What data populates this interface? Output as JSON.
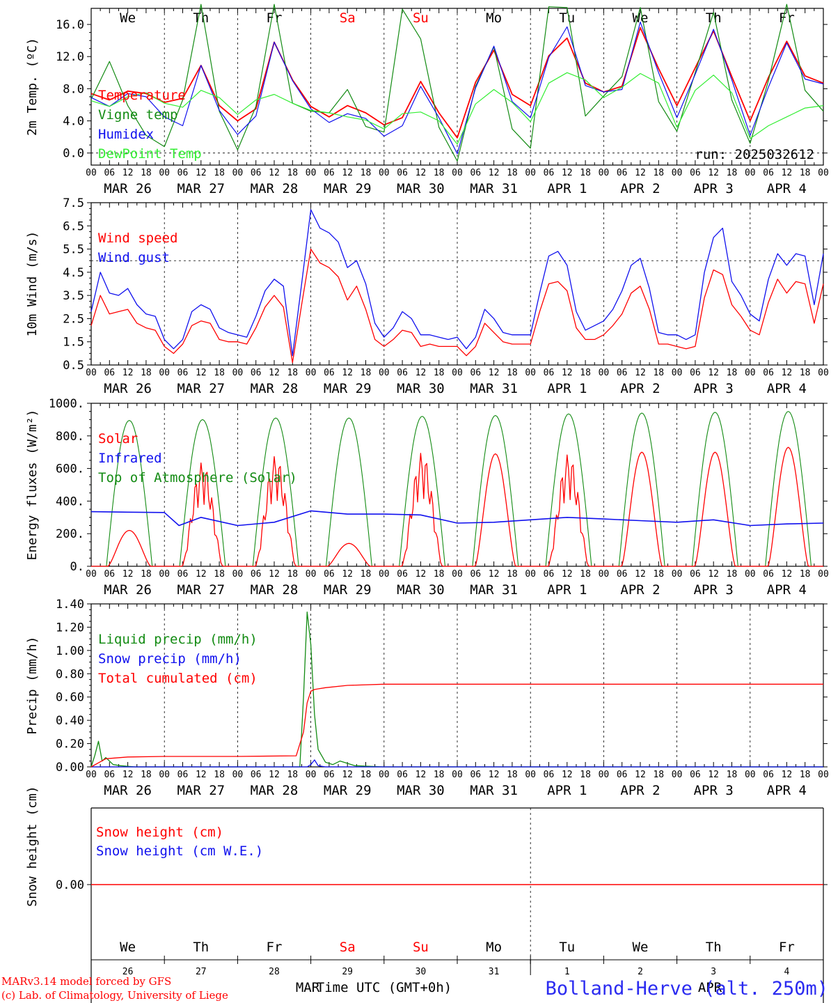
{
  "colors": {
    "red": "#ff0000",
    "green": "#138b13",
    "blue": "#1010ee",
    "light_green": "#33ee33",
    "axis": "#000000",
    "station": "#2b2bf0"
  },
  "shared": {
    "hour_ticks": [
      "00",
      "06",
      "12",
      "18"
    ],
    "dates": [
      "MAR 26",
      "MAR 27",
      "MAR 28",
      "MAR 29",
      "MAR 30",
      "MAR 31",
      "APR  1",
      "APR  2",
      "APR  3",
      "APR  4"
    ],
    "weekdays": [
      {
        "label": "We",
        "color": "#000000"
      },
      {
        "label": "Th",
        "color": "#000000"
      },
      {
        "label": "Fr",
        "color": "#000000"
      },
      {
        "label": "Sa",
        "color": "#ff0000"
      },
      {
        "label": "Su",
        "color": "#ff0000"
      },
      {
        "label": "Mo",
        "color": "#000000"
      },
      {
        "label": "Tu",
        "color": "#000000"
      },
      {
        "label": "We",
        "color": "#000000"
      },
      {
        "label": "Th",
        "color": "#000000"
      },
      {
        "label": "Fr",
        "color": "#000000"
      }
    ],
    "day_numbers": [
      "26",
      "27",
      "28",
      "29",
      "30",
      "31",
      "1",
      "2",
      "3",
      "4"
    ],
    "month_labels": [
      "MAR",
      "APR"
    ]
  },
  "footer": {
    "credit_line1": "MARv3.14 model forced by GFS",
    "credit_line2": "(c) Lab. of Climatology, University of Liege",
    "xlabel": "Time UTC (GMT+0h)",
    "station": "Bolland-Herve (alt. 250m)"
  },
  "chart_data": [
    {
      "type": "line",
      "ylabel": "2m Temp. (ºC)",
      "ylim": [
        -1.5,
        18.0
      ],
      "yticks": [
        "0.0",
        "4.0",
        "8.0",
        "12.0",
        "16.0"
      ],
      "ytick_values": [
        0,
        4,
        8,
        12,
        16
      ],
      "run_label": "run: 2025032612",
      "x_days": [
        0,
        0.25,
        0.5,
        0.75,
        1,
        1.25,
        1.5,
        1.75,
        2,
        2.25,
        2.5,
        2.75,
        3,
        3.25,
        3.5,
        3.75,
        4,
        4.25,
        4.5,
        4.75,
        5,
        5.25,
        5.5,
        5.75,
        6,
        6.25,
        6.5,
        6.75,
        7,
        7.25,
        7.5,
        7.75,
        8,
        8.25,
        8.5,
        8.75,
        9,
        9.25,
        9.5,
        9.75,
        10
      ],
      "series": [
        {
          "name": "Temperature",
          "color": "#ff0000",
          "values": [
            7.4,
            6.6,
            7.7,
            7.4,
            6.3,
            6.8,
            10.9,
            5.9,
            4.0,
            5.5,
            13.8,
            9.1,
            5.8,
            4.5,
            5.9,
            5.0,
            3.5,
            4.4,
            8.9,
            5.0,
            1.9,
            8.8,
            12.8,
            7.3,
            5.9,
            12.1,
            14.3,
            8.7,
            7.6,
            8.3,
            15.6,
            10.5,
            5.9,
            10.6,
            15.2,
            9.5,
            4.0,
            9.4,
            13.9,
            9.6,
            8.7
          ]
        },
        {
          "name": "Vigne temp",
          "color": "#138b13",
          "values": [
            6.7,
            11.4,
            5.9,
            2.2,
            0.8,
            6.6,
            18.5,
            5.2,
            0.4,
            5.8,
            18.5,
            6.2,
            5.2,
            5.0,
            7.9,
            3.3,
            2.6,
            17.9,
            14.2,
            3.2,
            -1.0,
            8.3,
            13.2,
            3.0,
            0.6,
            18.2,
            18.1,
            4.6,
            7.1,
            9.5,
            18.1,
            6.4,
            2.7,
            10.0,
            17.5,
            6.6,
            1.2,
            9.0,
            18.5,
            7.8,
            5.2
          ]
        },
        {
          "name": "Humidex",
          "color": "#1010ee",
          "values": [
            6.9,
            5.8,
            7.4,
            7.0,
            4.5,
            3.4,
            10.9,
            5.3,
            2.3,
            4.6,
            13.8,
            9.0,
            5.5,
            3.8,
            4.9,
            4.3,
            2.1,
            3.4,
            8.3,
            4.4,
            -0.1,
            8.1,
            13.3,
            6.4,
            4.4,
            11.9,
            15.7,
            8.4,
            7.6,
            7.9,
            16.3,
            10.0,
            4.4,
            9.8,
            15.4,
            9.1,
            2.2,
            8.2,
            13.7,
            9.2,
            8.6
          ]
        },
        {
          "name": "DewPoint Temp",
          "color": "#33ee33",
          "values": [
            6.5,
            5.8,
            7.0,
            7.5,
            6.2,
            5.7,
            7.8,
            6.9,
            4.8,
            6.6,
            7.3,
            6.2,
            5.3,
            5.0,
            4.5,
            4.1,
            3.0,
            4.9,
            5.1,
            4.0,
            1.1,
            6.1,
            7.9,
            6.3,
            3.9,
            8.7,
            10.0,
            9.1,
            6.9,
            8.2,
            9.9,
            8.7,
            3.2,
            7.8,
            9.7,
            7.5,
            1.8,
            3.4,
            4.5,
            5.6,
            5.9
          ]
        }
      ]
    },
    {
      "type": "line",
      "ylabel": "10m Wind (m/s)",
      "ylim": [
        0.5,
        7.5
      ],
      "yticks": [
        "0.5",
        "1.5",
        "2.5",
        "3.5",
        "4.5",
        "5.5",
        "6.5",
        "7.5"
      ],
      "ytick_values": [
        0.5,
        1.5,
        2.5,
        3.5,
        4.5,
        5.5,
        6.5,
        7.5
      ],
      "reference_line": 5.0,
      "x_days": [
        0,
        0.125,
        0.25,
        0.375,
        0.5,
        0.625,
        0.75,
        0.875,
        1,
        1.125,
        1.25,
        1.375,
        1.5,
        1.625,
        1.75,
        1.875,
        2,
        2.125,
        2.25,
        2.375,
        2.5,
        2.625,
        2.75,
        2.875,
        3,
        3.125,
        3.25,
        3.375,
        3.5,
        3.625,
        3.75,
        3.875,
        4,
        4.125,
        4.25,
        4.375,
        4.5,
        4.625,
        4.75,
        4.875,
        5,
        5.125,
        5.25,
        5.375,
        5.5,
        5.625,
        5.75,
        5.875,
        6,
        6.125,
        6.25,
        6.375,
        6.5,
        6.625,
        6.75,
        6.875,
        7,
        7.125,
        7.25,
        7.375,
        7.5,
        7.625,
        7.75,
        7.875,
        8,
        8.125,
        8.25,
        8.375,
        8.5,
        8.625,
        8.75,
        8.875,
        9,
        9.125,
        9.25,
        9.375,
        9.5,
        9.625,
        9.75,
        9.875,
        10
      ],
      "series": [
        {
          "name": "Wind speed",
          "color": "#ff0000",
          "values": [
            2.2,
            3.5,
            2.7,
            2.8,
            2.9,
            2.3,
            2.1,
            2.0,
            1.3,
            1.0,
            1.4,
            2.2,
            2.4,
            2.3,
            1.6,
            1.5,
            1.5,
            1.4,
            2.1,
            3.0,
            3.5,
            3.0,
            0.6,
            3.1,
            5.5,
            4.9,
            4.7,
            4.3,
            3.3,
            3.9,
            2.9,
            1.6,
            1.3,
            1.6,
            2.0,
            1.9,
            1.3,
            1.4,
            1.3,
            1.3,
            1.3,
            0.9,
            1.3,
            2.3,
            1.9,
            1.5,
            1.4,
            1.4,
            1.4,
            2.8,
            4.0,
            4.1,
            3.7,
            2.1,
            1.6,
            1.6,
            1.8,
            2.2,
            2.7,
            3.6,
            3.9,
            2.9,
            1.4,
            1.4,
            1.3,
            1.2,
            1.3,
            3.4,
            4.6,
            4.4,
            3.1,
            2.6,
            2.0,
            1.8,
            3.2,
            4.2,
            3.6,
            4.1,
            4.0,
            2.3,
            4.0
          ]
        },
        {
          "name": "Wind gust",
          "color": "#1010ee",
          "values": [
            2.8,
            4.5,
            3.6,
            3.5,
            3.8,
            3.1,
            2.7,
            2.6,
            1.6,
            1.2,
            1.6,
            2.8,
            3.1,
            2.9,
            2.1,
            1.9,
            1.8,
            1.7,
            2.6,
            3.7,
            4.2,
            3.9,
            0.9,
            4.0,
            7.2,
            6.4,
            6.2,
            5.8,
            4.7,
            5.0,
            4.0,
            2.3,
            1.7,
            2.1,
            2.8,
            2.5,
            1.8,
            1.8,
            1.7,
            1.6,
            1.7,
            1.2,
            1.7,
            2.9,
            2.5,
            1.9,
            1.8,
            1.8,
            1.8,
            3.6,
            5.2,
            5.4,
            4.8,
            2.8,
            2.0,
            2.2,
            2.4,
            2.9,
            3.7,
            4.8,
            5.1,
            3.8,
            1.9,
            1.8,
            1.8,
            1.6,
            1.8,
            4.5,
            6.0,
            6.4,
            4.1,
            3.5,
            2.7,
            2.4,
            4.2,
            5.3,
            4.8,
            5.3,
            5.2,
            3.1,
            5.3
          ]
        }
      ]
    },
    {
      "type": "line",
      "ylabel": "Energy fluxes (W/m²)",
      "ylim": [
        0,
        1000
      ],
      "yticks": [
        "0.",
        "200.",
        "400.",
        "600.",
        "800.",
        "1000."
      ],
      "ytick_values": [
        0,
        200,
        400,
        600,
        800,
        1000
      ],
      "series": [
        {
          "name": "Solar",
          "color": "#ff0000",
          "peaks": [
            220,
            640,
            680,
            140,
            700,
            690,
            690,
            700,
            700,
            730
          ],
          "ragged": [
            false,
            true,
            true,
            false,
            true,
            false,
            true,
            false,
            false,
            false
          ]
        },
        {
          "name": "Infrared",
          "color": "#1010ee",
          "x_days": [
            0,
            0.5,
            1,
            1.2,
            1.5,
            2,
            2.5,
            3,
            3.5,
            4,
            4.5,
            5,
            5.5,
            6,
            6.5,
            7,
            7.5,
            8,
            8.5,
            9,
            9.5,
            10
          ],
          "values": [
            335,
            332,
            330,
            250,
            300,
            250,
            270,
            340,
            320,
            320,
            315,
            265,
            270,
            285,
            300,
            290,
            280,
            270,
            285,
            250,
            260,
            265
          ]
        },
        {
          "name": "Top of Atmosphere (Solar)",
          "color": "#138b13",
          "peaks": [
            895,
            900,
            910,
            910,
            920,
            925,
            935,
            940,
            945,
            950
          ]
        }
      ]
    },
    {
      "type": "line",
      "ylabel": "Precip (mm/h)",
      "ylim": [
        0,
        1.4
      ],
      "yticks": [
        "0.00",
        "0.20",
        "0.40",
        "0.60",
        "0.80",
        "1.00",
        "1.20",
        "1.40"
      ],
      "ytick_values": [
        0,
        0.2,
        0.4,
        0.6,
        0.8,
        1.0,
        1.2,
        1.4
      ],
      "series": [
        {
          "name": "Liquid precip (mm/h)",
          "color": "#138b13",
          "x_days": [
            0,
            0.05,
            0.1,
            0.15,
            0.2,
            0.3,
            0.4,
            0.6,
            1.0,
            2.85,
            2.9,
            2.95,
            3.0,
            3.05,
            3.1,
            3.2,
            3.3,
            3.4,
            3.6,
            4.0,
            10
          ],
          "values": [
            0.0,
            0.1,
            0.22,
            0.05,
            0.08,
            0.02,
            0.01,
            0.0,
            0.0,
            0.0,
            0.6,
            1.33,
            1.05,
            0.45,
            0.15,
            0.04,
            0.02,
            0.05,
            0.01,
            0.0,
            0.0
          ]
        },
        {
          "name": "Snow precip (mm/h)",
          "color": "#1010ee",
          "x_days": [
            0,
            2.95,
            3.0,
            3.05,
            3.1,
            3.2,
            10
          ],
          "values": [
            0,
            0,
            0.02,
            0.06,
            0.01,
            0,
            0
          ]
        },
        {
          "name": "Total cumulated (cm)",
          "color": "#ff0000",
          "x_days": [
            0,
            0.2,
            0.5,
            1.0,
            2.0,
            2.8,
            2.9,
            2.95,
            3.0,
            3.05,
            3.1,
            3.2,
            3.5,
            4.0,
            10
          ],
          "values": [
            0.0,
            0.07,
            0.085,
            0.09,
            0.09,
            0.095,
            0.3,
            0.55,
            0.65,
            0.665,
            0.67,
            0.68,
            0.7,
            0.71,
            0.71
          ]
        }
      ]
    },
    {
      "type": "line",
      "ylabel": "Snow height (cm)",
      "ytick_labels": [
        "0.00"
      ],
      "series": [
        {
          "name": "Snow height (cm)",
          "color": "#ff0000",
          "x_days": [
            0,
            10
          ],
          "values": [
            0,
            0
          ]
        },
        {
          "name": "Snow height (cm W.E.)",
          "color": "#1010ee",
          "x_days": [
            0,
            10
          ],
          "values": [
            0,
            0
          ]
        }
      ]
    }
  ]
}
